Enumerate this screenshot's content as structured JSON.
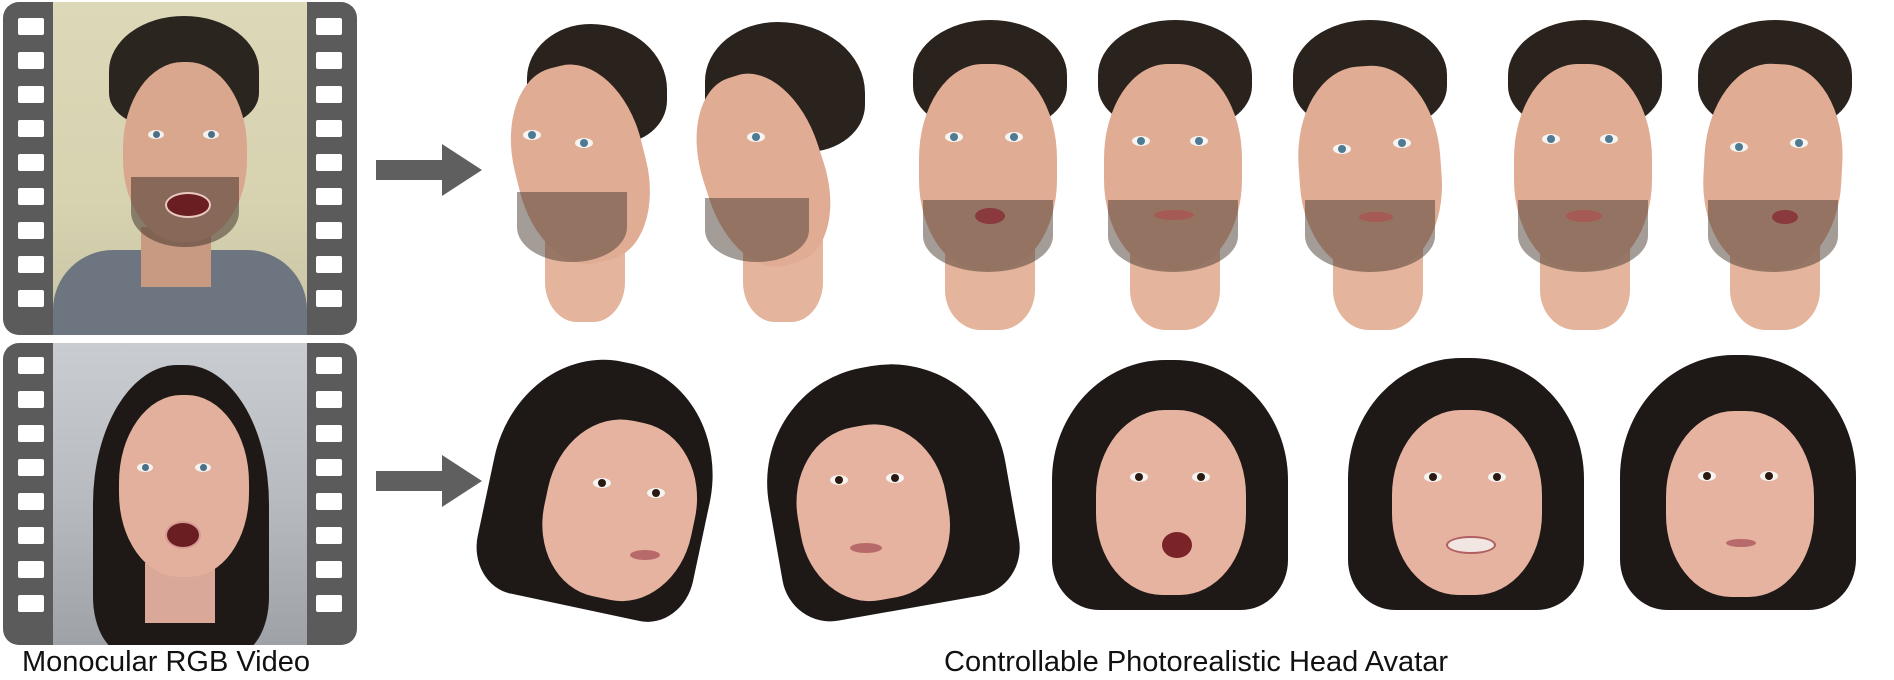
{
  "figure": {
    "input_label": "Monocular RGB Video",
    "output_label": "Controllable Photorealistic Head Avatar"
  },
  "rows": [
    {
      "subject": "man with curly hair and beard",
      "avatar_count": 7
    },
    {
      "subject": "woman with long dark hair",
      "avatar_count": 5
    }
  ],
  "icons": {
    "arrow": "right-arrow-icon",
    "film": "film-strip-icon"
  },
  "colors": {
    "film": "#5b5b5b",
    "arrow": "#5f5f5f",
    "background": "#ffffff",
    "text": "#111111"
  }
}
